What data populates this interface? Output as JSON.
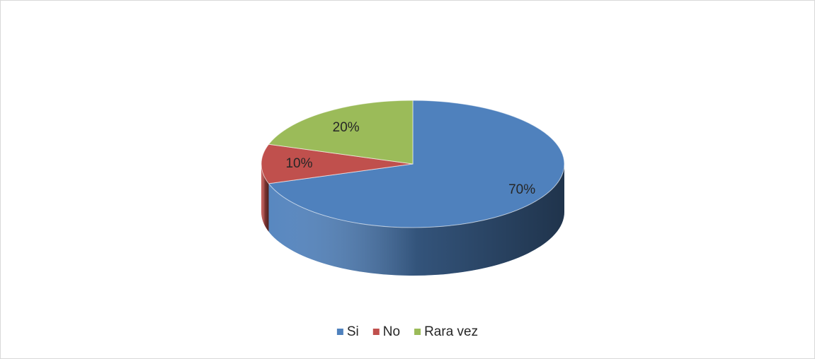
{
  "chart_data": {
    "type": "pie",
    "categories": [
      "Si",
      "No",
      "Rara vez"
    ],
    "values": [
      70,
      10,
      20
    ],
    "value_labels": [
      "70%",
      "10%",
      "20%"
    ],
    "colors": [
      "#4f81bd",
      "#c0504d",
      "#9bbb59"
    ],
    "legend": "bottom"
  }
}
